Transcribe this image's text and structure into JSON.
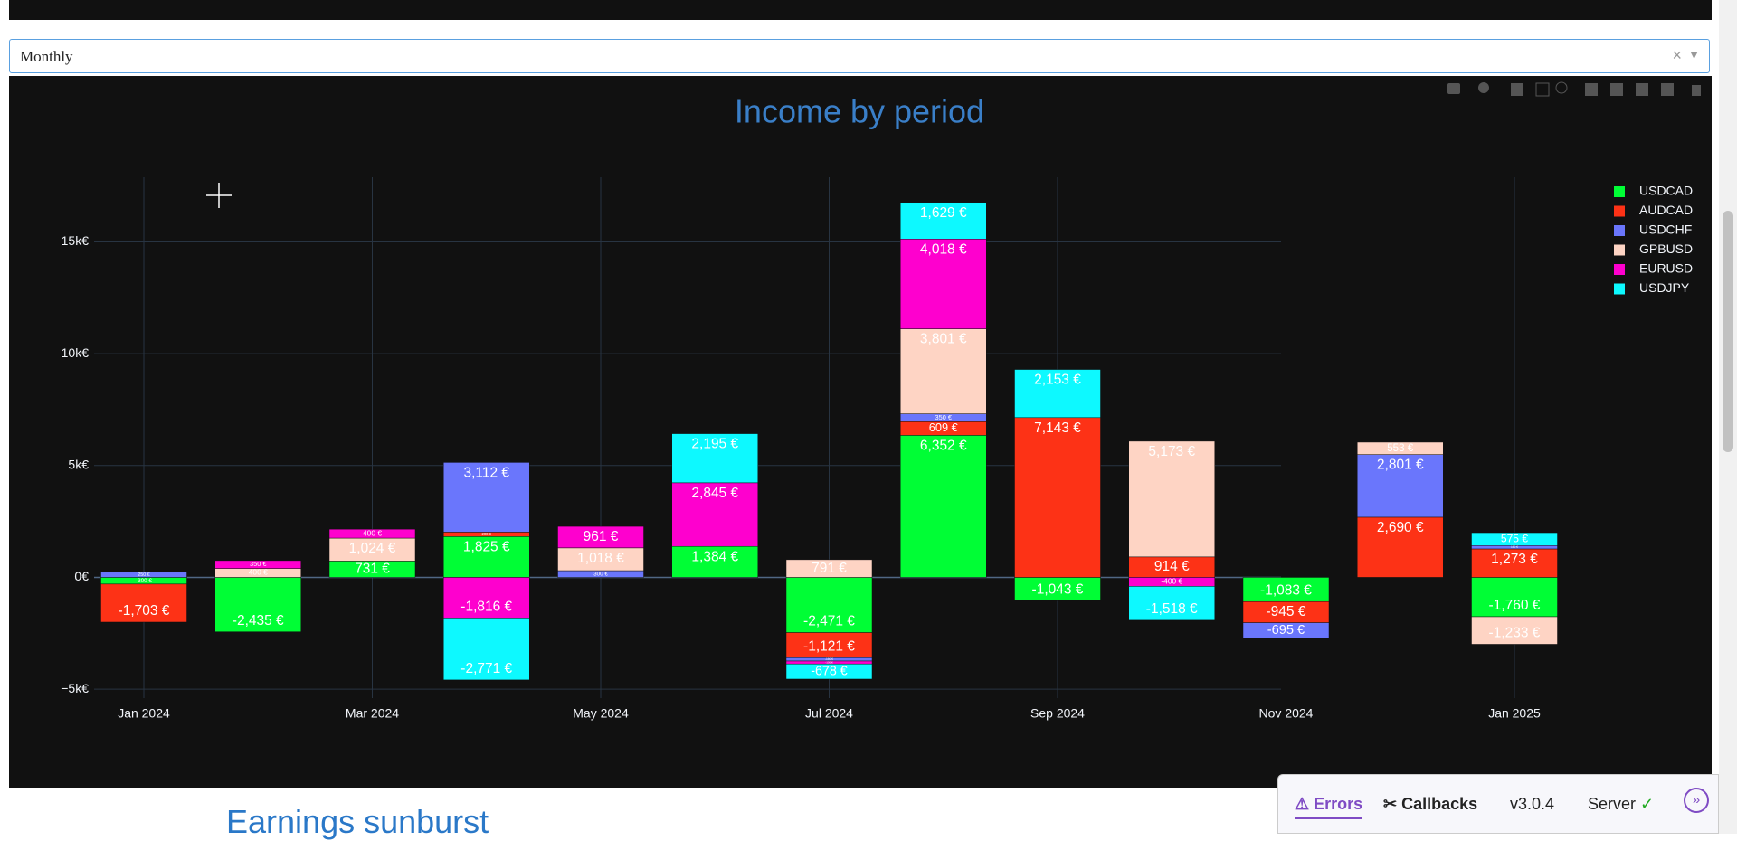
{
  "dropdown": {
    "value": "Monthly"
  },
  "chart_data": {
    "type": "bar",
    "barmode": "relative",
    "title": "Income by period",
    "categories": [
      "Jan 2024",
      null,
      "Mar 2024",
      null,
      "May 2024",
      null,
      "Jul 2024",
      null,
      "Sep 2024",
      null,
      "Nov 2024",
      null,
      "Jan 2025"
    ],
    "series": [
      {
        "name": "USDCAD",
        "color": "#00fe35",
        "values": [
          -300,
          -2435,
          731,
          1825,
          0,
          1384,
          -2471,
          6352,
          -1043,
          0,
          -1083,
          0,
          -1760
        ],
        "value_labels": [
          "-300 €",
          "-2,435 €",
          "731 €",
          "1,825 €",
          null,
          "1,384 €",
          "-2,471 €",
          "6,352 €",
          "-1,043 €",
          null,
          "-1,083 €",
          null,
          "-1,760 €"
        ]
      },
      {
        "name": "AUDCAD",
        "color": "#fd3216",
        "values": [
          -1703,
          0,
          0,
          200,
          0,
          0,
          -1121,
          609,
          7143,
          914,
          -945,
          2690,
          1273
        ],
        "value_labels": [
          "-1,703 €",
          null,
          null,
          "200 €",
          null,
          null,
          "-1,121 €",
          "609 €",
          "7,143 €",
          "914 €",
          "-945 €",
          "2,690 €",
          "1,273 €"
        ]
      },
      {
        "name": "USDCHF",
        "color": "#6a76fc",
        "values": [
          250,
          0,
          0,
          3112,
          300,
          0,
          -150,
          350,
          0,
          0,
          -695,
          2801,
          150
        ],
        "value_labels": [
          "250 €",
          null,
          null,
          "3,112 €",
          "300 €",
          null,
          "-150 €",
          "350 €",
          null,
          null,
          "-695 €",
          "2,801 €",
          "150 €"
        ]
      },
      {
        "name": "GPBUSD",
        "color": "#fed4c4",
        "values": [
          0,
          400,
          1024,
          0,
          1018,
          0,
          791,
          3801,
          0,
          5173,
          0,
          553,
          -1233
        ],
        "value_labels": [
          null,
          "400 €",
          "1,024 €",
          null,
          "1,018 €",
          null,
          "791 €",
          "3,801 €",
          null,
          "5,173 €",
          null,
          "553 €",
          "-1,233 €"
        ]
      },
      {
        "name": "EURUSD",
        "color": "#fe00ce",
        "values": [
          0,
          350,
          400,
          -1816,
          961,
          2845,
          -130,
          4018,
          0,
          -400,
          0,
          0,
          0
        ],
        "value_labels": [
          null,
          "350 €",
          "400 €",
          "-1,816 €",
          "961 €",
          "2,845 €",
          "-130 €",
          "4,018 €",
          null,
          "-400 €",
          null,
          null,
          null
        ]
      },
      {
        "name": "USDJPY",
        "color": "#0df9ff",
        "values": [
          0,
          0,
          0,
          -2771,
          0,
          2195,
          -678,
          1629,
          2153,
          -1518,
          0,
          0,
          575
        ],
        "value_labels": [
          null,
          null,
          null,
          "-2,771 €",
          null,
          "2,195 €",
          "-678 €",
          "1,629 €",
          "2,153 €",
          "-1,518 €",
          null,
          null,
          "575 €"
        ]
      }
    ],
    "ylim": [
      -5400,
      17890
    ],
    "yticks": [
      {
        "value": -5000,
        "label": "−5k€"
      },
      {
        "value": 0,
        "label": "0€"
      },
      {
        "value": 5000,
        "label": "5k€"
      },
      {
        "value": 10000,
        "label": "10k€"
      },
      {
        "value": 15000,
        "label": "15k€"
      }
    ],
    "grid": true,
    "legend": "top-right"
  },
  "next_heading": "Earnings sunburst",
  "debug_menu": {
    "errors": "Errors",
    "callbacks": "Callbacks",
    "version": "v3.0.4",
    "server": "Server"
  }
}
